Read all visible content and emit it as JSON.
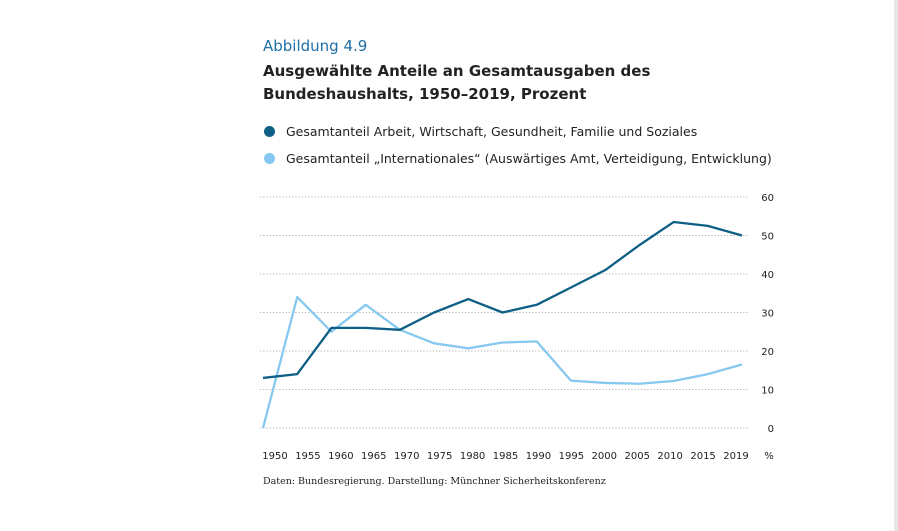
{
  "figure_label": "Abbildung 4.9",
  "title": "Ausgewählte Anteile an Gesamtausgaben des Bundeshaushalts, 1950–2019, Prozent",
  "source": "Daten: Bundesregierung. Darstellung: Münchner Sicherheitskonferenz",
  "chart_data": {
    "type": "line",
    "title": "Ausgewählte Anteile an Gesamtausgaben des Bundeshaushalts, 1950–2019, Prozent",
    "categories": [
      "1950",
      "1955",
      "1960",
      "1965",
      "1970",
      "1975",
      "1980",
      "1985",
      "1990",
      "1995",
      "2000",
      "2005",
      "2010",
      "2015",
      "2019"
    ],
    "ylabel": "%",
    "ylim": [
      0,
      60
    ],
    "yticks": [
      0,
      10,
      20,
      30,
      40,
      50,
      60
    ],
    "grid": true,
    "legend_position": "top-left",
    "series": [
      {
        "name": "Gesamtanteil Arbeit, Wirtschaft, Gesundheit, Familie und Soziales",
        "color": "#0e5f86",
        "values": [
          13,
          14,
          26,
          26,
          25.5,
          30,
          33.5,
          30,
          32,
          36.5,
          41,
          47.5,
          53.5,
          52.5,
          50
        ]
      },
      {
        "name": "Gesamtanteil „Internationales“ (Auswärtiges Amt, Verteidigung, Entwicklung)",
        "color": "#86c8ef",
        "values": [
          0,
          34,
          25,
          32,
          25.5,
          22,
          20.7,
          22.2,
          22.5,
          12.3,
          11.7,
          11.5,
          12.2,
          14,
          16.5
        ]
      }
    ]
  }
}
